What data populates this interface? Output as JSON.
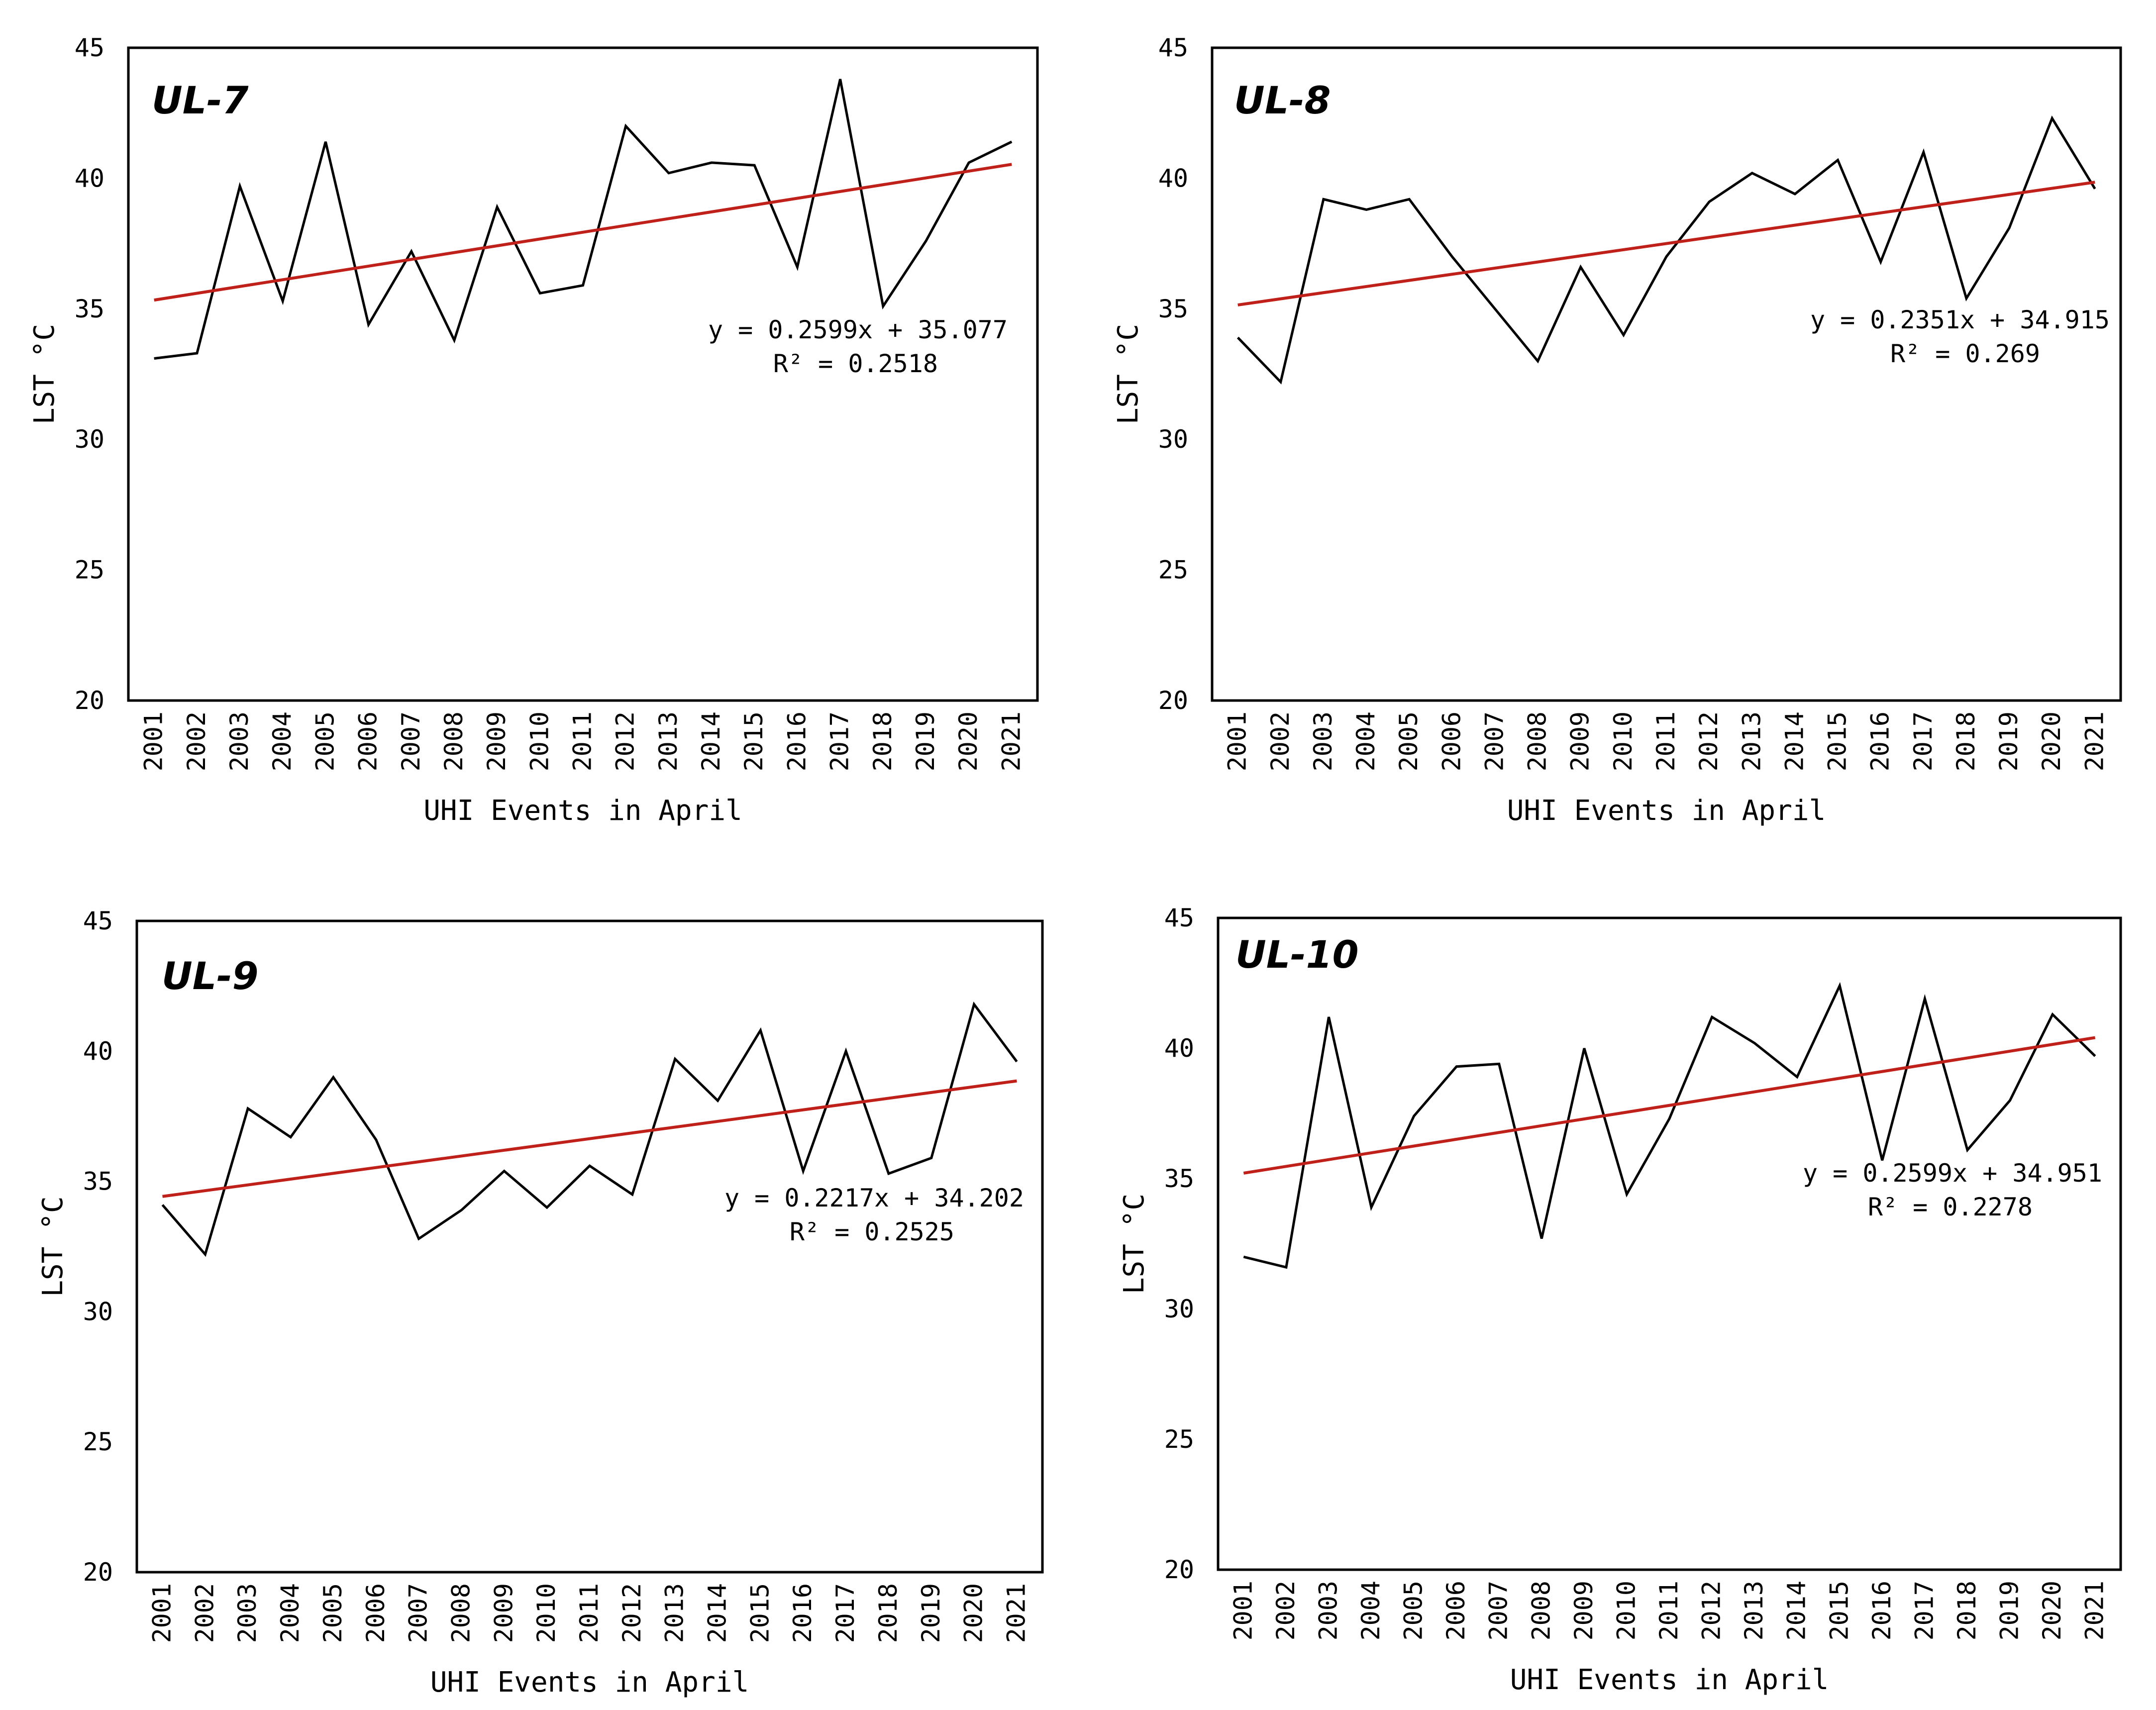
{
  "chart_data": [
    {
      "type": "line",
      "title": "UL-7",
      "xlabel": "UHI Events in April",
      "ylabel": "LST °C",
      "categories": [
        "2001",
        "2002",
        "2003",
        "2004",
        "2005",
        "2006",
        "2007",
        "2008",
        "2009",
        "2010",
        "2011",
        "2012",
        "2013",
        "2014",
        "2015",
        "2016",
        "2017",
        "2018",
        "2019",
        "2020",
        "2021"
      ],
      "ylim": [
        20,
        45
      ],
      "yticks": [
        "20",
        "25",
        "30",
        "35",
        "40",
        "45"
      ],
      "series": [
        {
          "name": "LST",
          "color": "#000000",
          "values": [
            33.1,
            33.3,
            39.7,
            35.3,
            41.4,
            34.4,
            37.2,
            33.8,
            38.9,
            35.6,
            35.9,
            42.0,
            40.2,
            40.6,
            40.5,
            36.6,
            43.8,
            35.1,
            37.6,
            40.6,
            41.4
          ]
        },
        {
          "name": "Linear trend",
          "color": "#c0201a",
          "trend": {
            "slope": 0.2599,
            "intercept": 35.077
          }
        }
      ],
      "equation": "y = 0.2599x + 35.077",
      "r2": "R² = 0.2518"
    },
    {
      "type": "line",
      "title": "UL-8",
      "xlabel": "UHI Events in April",
      "ylabel": "LST °C",
      "categories": [
        "2001",
        "2002",
        "2003",
        "2004",
        "2005",
        "2006",
        "2007",
        "2008",
        "2009",
        "2010",
        "2011",
        "2012",
        "2013",
        "2014",
        "2015",
        "2016",
        "2017",
        "2018",
        "2019",
        "2020",
        "2021"
      ],
      "ylim": [
        20,
        45
      ],
      "yticks": [
        "20",
        "25",
        "30",
        "35",
        "40",
        "45"
      ],
      "series": [
        {
          "name": "LST",
          "color": "#000000",
          "values": [
            33.9,
            32.2,
            39.2,
            38.8,
            39.2,
            37.0,
            35.0,
            33.0,
            36.6,
            34.0,
            37.0,
            39.1,
            40.2,
            39.4,
            40.7,
            36.8,
            41.0,
            35.4,
            38.1,
            42.3,
            39.6
          ]
        },
        {
          "name": "Linear trend",
          "color": "#c0201a",
          "trend": {
            "slope": 0.2351,
            "intercept": 34.915
          }
        }
      ],
      "equation": "y = 0.2351x + 34.915",
      "r2": "R² = 0.269"
    },
    {
      "type": "line",
      "title": "UL-9",
      "xlabel": "UHI Events in April",
      "ylabel": "LST °C",
      "categories": [
        "2001",
        "2002",
        "2003",
        "2004",
        "2005",
        "2006",
        "2007",
        "2008",
        "2009",
        "2010",
        "2011",
        "2012",
        "2013",
        "2014",
        "2015",
        "2016",
        "2017",
        "2018",
        "2019",
        "2020",
        "2021"
      ],
      "ylim": [
        20,
        45
      ],
      "yticks": [
        "20",
        "25",
        "30",
        "35",
        "40",
        "45"
      ],
      "series": [
        {
          "name": "LST",
          "color": "#000000",
          "values": [
            34.1,
            32.2,
            37.8,
            36.7,
            39.0,
            36.6,
            32.8,
            33.9,
            35.4,
            34.0,
            35.6,
            34.5,
            39.7,
            38.1,
            40.8,
            35.4,
            40.0,
            35.3,
            35.9,
            41.8,
            39.6
          ]
        },
        {
          "name": "Linear trend",
          "color": "#c0201a",
          "trend": {
            "slope": 0.2217,
            "intercept": 34.202
          }
        }
      ],
      "equation": "y = 0.2217x + 34.202",
      "r2": "R² = 0.2525"
    },
    {
      "type": "line",
      "title": "UL-10",
      "xlabel": "UHI Events in April",
      "ylabel": "LST °C",
      "categories": [
        "2001",
        "2002",
        "2003",
        "2004",
        "2005",
        "2006",
        "2007",
        "2008",
        "2009",
        "2010",
        "2011",
        "2012",
        "2013",
        "2014",
        "2015",
        "2016",
        "2017",
        "2018",
        "2019",
        "2020",
        "2021"
      ],
      "ylim": [
        20,
        45
      ],
      "yticks": [
        "20",
        "25",
        "30",
        "35",
        "40",
        "45"
      ],
      "series": [
        {
          "name": "LST",
          "color": "#000000",
          "values": [
            32.0,
            31.6,
            41.2,
            33.9,
            37.4,
            39.3,
            39.4,
            32.7,
            40.0,
            34.4,
            37.3,
            41.2,
            40.2,
            38.9,
            42.4,
            35.7,
            41.9,
            36.1,
            38.0,
            41.3,
            39.7
          ]
        },
        {
          "name": "Linear trend",
          "color": "#c0201a",
          "trend": {
            "slope": 0.2599,
            "intercept": 34.951
          }
        }
      ],
      "equation": "y = 0.2599x + 34.951",
      "r2": "R² = 0.2278"
    }
  ]
}
